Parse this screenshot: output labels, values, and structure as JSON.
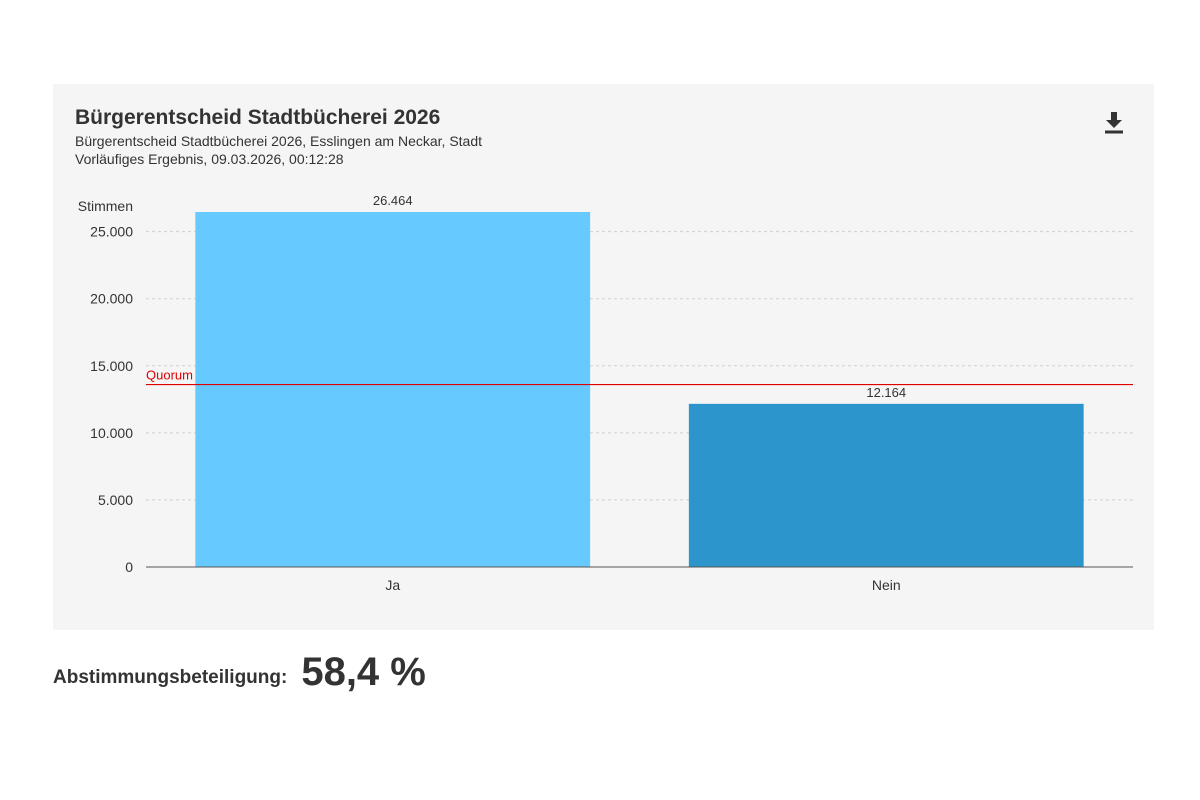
{
  "header": {
    "title": "Bürgerentscheid Stadtbücherei 2026",
    "subtitle": "Bürgerentscheid Stadtbücherei 2026, Esslingen am Neckar, Stadt",
    "status": "Vorläufiges Ergebnis, 09.03.2026, 00:12:28"
  },
  "toolbar": {
    "download_icon": "download-icon"
  },
  "turnout": {
    "label": "Abstimmungsbeteiligung:",
    "value": "58,4 %"
  },
  "colors": {
    "background": "#f5f5f5",
    "ja": "#66c9ff",
    "nein": "#2b95cc",
    "quorum": "#e00000",
    "gridline": "#d0d0d0",
    "axis": "#555555",
    "text": "#333333"
  },
  "chart_data": {
    "type": "bar",
    "title": "Bürgerentscheid Stadtbücherei 2026",
    "ylabel": "Stimmen",
    "xlabel": "",
    "categories": [
      "Ja",
      "Nein"
    ],
    "values": [
      26464,
      12164
    ],
    "value_labels": [
      "26.464",
      "12.164"
    ],
    "ylim": [
      0,
      26464
    ],
    "yticks": [
      0,
      5000,
      10000,
      15000,
      20000,
      25000
    ],
    "ytick_labels": [
      "0",
      "5.000",
      "10.000",
      "15.000",
      "20.000",
      "25.000"
    ],
    "grid": true,
    "reference_line": {
      "label": "Quorum",
      "value": 13600
    }
  }
}
